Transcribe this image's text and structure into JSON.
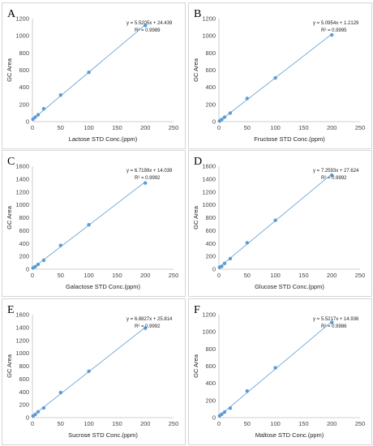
{
  "chart_data": [
    {
      "panel": "A",
      "type": "scatter",
      "xlabel": "Lactose STD Conc.(ppm)",
      "ylabel": "GC Area",
      "xlim": [
        0,
        250
      ],
      "ylim": [
        0,
        1200
      ],
      "xticks": [
        0,
        50,
        100,
        150,
        200,
        250
      ],
      "yticks": [
        0,
        200,
        400,
        600,
        800,
        1000,
        1200
      ],
      "x": [
        1,
        5,
        10,
        20,
        50,
        100,
        200
      ],
      "y": [
        29,
        52,
        80,
        150,
        310,
        575,
        1120
      ],
      "equation": "y = 5.5205x + 24.439",
      "r2": "R² = 0.9989",
      "trendline": {
        "slope": 5.5205,
        "intercept": 24.439
      }
    },
    {
      "panel": "B",
      "type": "scatter",
      "xlabel": "Fructose STD Conc.(ppm)",
      "ylabel": "GC Area",
      "xlim": [
        0,
        250
      ],
      "ylim": [
        0,
        1200
      ],
      "xticks": [
        0,
        50,
        100,
        150,
        200,
        250
      ],
      "yticks": [
        0,
        200,
        400,
        600,
        800,
        1000,
        1200
      ],
      "x": [
        1,
        5,
        10,
        20,
        50,
        100,
        200
      ],
      "y": [
        7,
        25,
        52,
        100,
        270,
        510,
        1010
      ],
      "equation": "y = 5.0954x + 1.2129",
      "r2": "R² = 0.9995",
      "trendline": {
        "slope": 5.0954,
        "intercept": 1.2129
      }
    },
    {
      "panel": "C",
      "type": "scatter",
      "xlabel": "Galactose STD Conc.(ppm)",
      "ylabel": "GC Area",
      "xlim": [
        0,
        250
      ],
      "ylim": [
        0,
        1600
      ],
      "xticks": [
        0,
        50,
        100,
        150,
        200,
        250
      ],
      "yticks": [
        0,
        200,
        400,
        600,
        800,
        1000,
        1200,
        1400,
        1600
      ],
      "x": [
        1,
        5,
        10,
        20,
        50,
        100,
        200
      ],
      "y": [
        20,
        40,
        75,
        140,
        370,
        690,
        1340
      ],
      "equation": "y = 6.7199x + 14.039",
      "r2": "R² = 0.9992",
      "trendline": {
        "slope": 6.7199,
        "intercept": 14.039
      }
    },
    {
      "panel": "D",
      "type": "scatter",
      "xlabel": "Glucose STD Conc.(ppm)",
      "ylabel": "GC Area",
      "xlim": [
        0,
        250
      ],
      "ylim": [
        0,
        1600
      ],
      "xticks": [
        0,
        50,
        100,
        150,
        200,
        250
      ],
      "yticks": [
        0,
        200,
        400,
        600,
        800,
        1000,
        1200,
        1400,
        1600
      ],
      "x": [
        1,
        5,
        10,
        20,
        50,
        100,
        200
      ],
      "y": [
        30,
        45,
        90,
        165,
        410,
        760,
        1460
      ],
      "equation": "y = 7.2593x + 27.624",
      "r2": "R² = 0.9992",
      "trendline": {
        "slope": 7.2593,
        "intercept": 27.624
      }
    },
    {
      "panel": "E",
      "type": "scatter",
      "xlabel": "Sucrose STD Conc.(ppm)",
      "ylabel": "GC Area",
      "xlim": [
        0,
        250
      ],
      "ylim": [
        0,
        1600
      ],
      "xticks": [
        0,
        50,
        100,
        150,
        200,
        250
      ],
      "yticks": [
        0,
        200,
        400,
        600,
        800,
        1000,
        1200,
        1400,
        1600
      ],
      "x": [
        1,
        5,
        10,
        20,
        50,
        100,
        200
      ],
      "y": [
        25,
        50,
        90,
        150,
        390,
        720,
        1390
      ],
      "equation": "y = 6.8827x + 25.814",
      "r2": "R² = 0.9992",
      "trendline": {
        "slope": 6.8827,
        "intercept": 25.814
      }
    },
    {
      "panel": "F",
      "type": "scatter",
      "xlabel": "Maltose STD Conc.(ppm)",
      "ylabel": "GC Area",
      "xlim": [
        0,
        250
      ],
      "ylim": [
        0,
        1200
      ],
      "xticks": [
        0,
        50,
        100,
        150,
        200,
        250
      ],
      "yticks": [
        0,
        200,
        400,
        600,
        800,
        1000,
        1200
      ],
      "x": [
        1,
        5,
        10,
        20,
        50,
        100,
        200
      ],
      "y": [
        20,
        40,
        65,
        110,
        310,
        580,
        1110
      ],
      "equation": "y = 5.5217x + 14.936",
      "r2": "R² = 0.9986",
      "trendline": {
        "slope": 5.5217,
        "intercept": 14.936
      }
    }
  ],
  "style": {
    "marker_color": "#5b9bd5",
    "line_color": "#5b9bd5",
    "axis_color": "#bfbfbf",
    "border_color": "#cccccc"
  }
}
